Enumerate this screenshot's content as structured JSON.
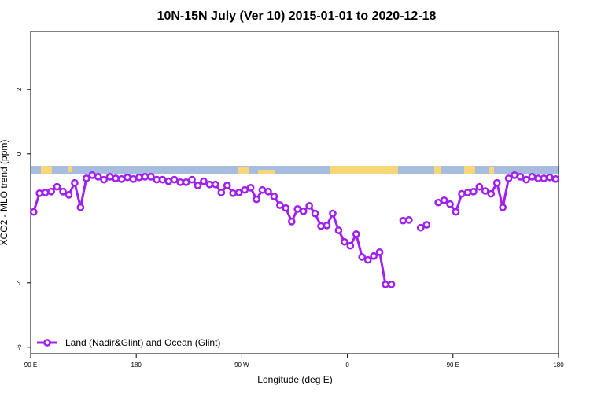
{
  "chart_data": {
    "type": "line",
    "title": "10N-15N July (Ver 10)   2015-01-01 to 2020-12-18",
    "xlabel": "Longitude (deg E)",
    "ylabel": "XCO2 - MLO trend (ppm)",
    "x": [
      92.5,
      97.5,
      102.5,
      107.5,
      112.5,
      117.5,
      122.5,
      127.5,
      132.5,
      137.5,
      142.5,
      147.5,
      152.5,
      157.5,
      162.5,
      167.5,
      172.5,
      177.5,
      182.5,
      187.5,
      192.5,
      197.5,
      202.5,
      207.5,
      212.5,
      217.5,
      222.5,
      227.5,
      232.5,
      237.5,
      242.5,
      247.5,
      252.5,
      257.5,
      262.5,
      267.5,
      272.5,
      277.5,
      282.5,
      287.5,
      292.5,
      297.5,
      302.5,
      307.5,
      312.5,
      317.5,
      322.5,
      327.5,
      332.5,
      337.5,
      342.5,
      347.5,
      352.5,
      357.5,
      362.5,
      367.5,
      372.5,
      377.5,
      382.5,
      387.5,
      392.5,
      397.5,
      402.5,
      407.5,
      412.5,
      417.5,
      422.5,
      427.5,
      432.5,
      437.5,
      442.5,
      447.5,
      452.5,
      457.5,
      462.5,
      467.5,
      472.5,
      477.5,
      482.5,
      487.5,
      492.5,
      497.5,
      502.5,
      507.5,
      512.5,
      517.5,
      522.5,
      527.5,
      532.5,
      537.5
    ],
    "series": [
      {
        "name": "Land (Nadir&Glint) and Ocean (Glint)",
        "color": "#a020f0",
        "values": [
          -1.8,
          -1.22,
          -1.2,
          -1.17,
          -1.02,
          -1.17,
          -1.27,
          -0.9,
          -1.66,
          -0.76,
          -0.66,
          -0.71,
          -0.8,
          -0.71,
          -0.76,
          -0.78,
          -0.73,
          -0.78,
          -0.73,
          -0.71,
          -0.71,
          -0.8,
          -0.8,
          -0.85,
          -0.8,
          -0.88,
          -0.88,
          -0.8,
          -0.98,
          -0.85,
          -0.95,
          -0.95,
          -1.2,
          -0.98,
          -1.22,
          -1.2,
          -1.12,
          -1.05,
          -1.41,
          -1.12,
          -1.17,
          -1.32,
          -1.59,
          -1.68,
          -2.1,
          -1.71,
          -1.78,
          -1.61,
          -1.85,
          -2.24,
          -2.22,
          -1.85,
          -2.37,
          -2.73,
          -2.85,
          -2.49,
          -3.2,
          -3.29,
          -3.17,
          -3.05,
          -4.05,
          -4.05,
          null,
          -2.07,
          -2.05,
          null,
          -2.29,
          -2.2,
          null,
          -1.51,
          -1.44,
          -1.56,
          -1.8,
          -1.24,
          -1.2,
          -1.17,
          -1.02,
          -1.15,
          -1.24,
          -0.9,
          -1.66,
          -0.76,
          -0.66,
          -0.71,
          -0.8,
          -0.71,
          -0.76,
          -0.76,
          -0.73,
          -0.78
        ]
      }
    ],
    "xlim": [
      90,
      540
    ],
    "xticks": [
      {
        "value": 90,
        "label": "90 E"
      },
      180,
      {
        "value": 270,
        "label": "90 W"
      },
      {
        "value": 360,
        "label": "0"
      },
      {
        "value": 450,
        "label": "90 E"
      },
      {
        "value": 540,
        "label": "180"
      }
    ],
    "ylim": [
      -6.2,
      3.8
    ],
    "yticks": [
      -6,
      -4,
      0,
      2
    ],
    "legend": "bottomleft"
  }
}
